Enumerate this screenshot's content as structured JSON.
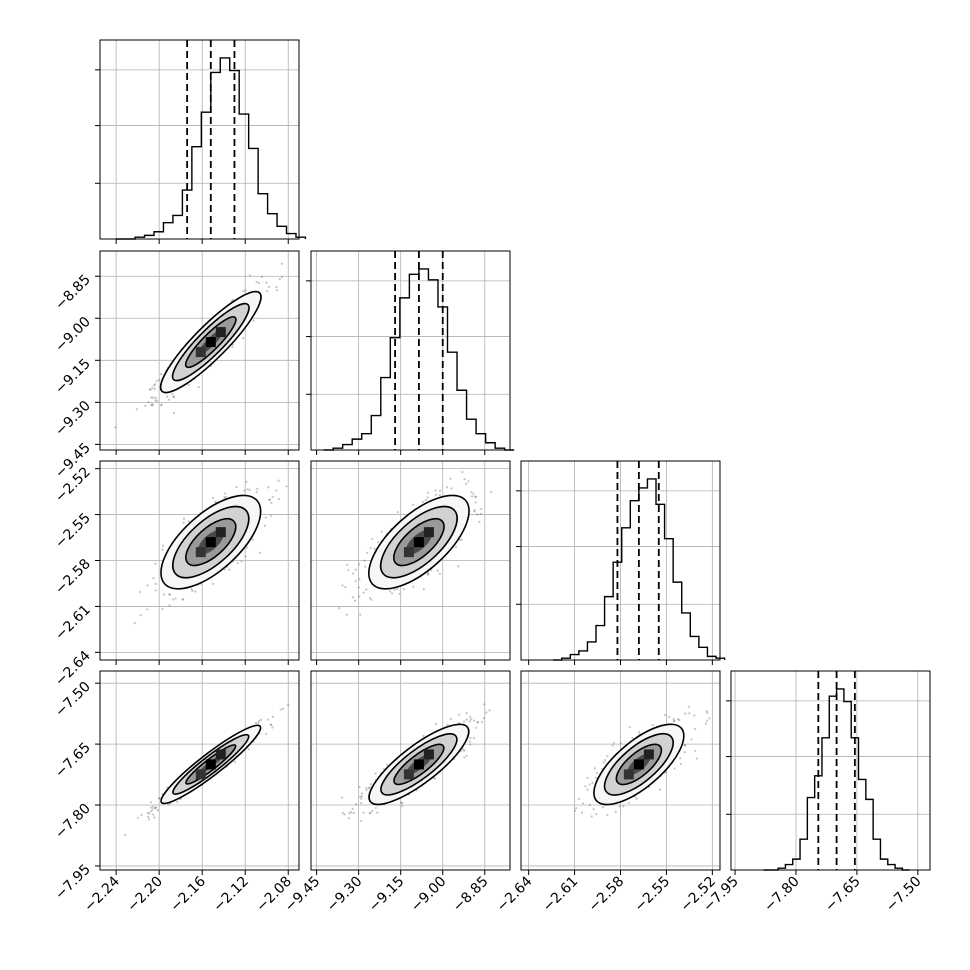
{
  "chart_data": {
    "type": "corner",
    "grid": true,
    "colors": {
      "line": "#000000",
      "grid": "#b0b0b0",
      "points": "#555555"
    },
    "parameters": [
      {
        "range": [
          -2.255,
          -2.07
        ],
        "mean": -2.152,
        "sd": 0.022,
        "quantiles": [
          -2.174,
          -2.152,
          -2.13
        ],
        "ticks": [
          {
            "v": -2.24,
            "label": "−2.24"
          },
          {
            "v": -2.2,
            "label": "−2.20"
          },
          {
            "v": -2.16,
            "label": "−2.16"
          },
          {
            "v": -2.12,
            "label": "−2.12"
          },
          {
            "v": -2.08,
            "label": "−2.08"
          }
        ]
      },
      {
        "range": [
          -9.47,
          -8.76
        ],
        "mean": -9.085,
        "sd": 0.085,
        "quantiles": [
          -9.17,
          -9.085,
          -9.0
        ],
        "ticks": [
          {
            "v": -9.45,
            "label": "−9.45"
          },
          {
            "v": -9.3,
            "label": "−9.30"
          },
          {
            "v": -9.15,
            "label": "−9.15"
          },
          {
            "v": -9.0,
            "label": "−9.00"
          },
          {
            "v": -8.85,
            "label": "−8.85"
          }
        ]
      },
      {
        "range": [
          -2.645,
          -2.515
        ],
        "mean": -2.568,
        "sd": 0.014,
        "quantiles": [
          -2.582,
          -2.568,
          -2.555
        ],
        "ticks": [
          {
            "v": -2.64,
            "label": "−2.64"
          },
          {
            "v": -2.61,
            "label": "−2.61"
          },
          {
            "v": -2.58,
            "label": "−2.58"
          },
          {
            "v": -2.55,
            "label": "−2.55"
          },
          {
            "v": -2.52,
            "label": "−2.52"
          }
        ]
      },
      {
        "range": [
          -7.96,
          -7.47
        ],
        "mean": -7.7,
        "sd": 0.045,
        "quantiles": [
          -7.745,
          -7.7,
          -7.655
        ],
        "ticks": [
          {
            "v": -7.95,
            "label": "−7.95"
          },
          {
            "v": -7.8,
            "label": "−7.80"
          },
          {
            "v": -7.65,
            "label": "−7.65"
          },
          {
            "v": -7.5,
            "label": "−7.50"
          }
        ]
      }
    ],
    "correlations": [
      [
        1,
        0.93,
        0.72,
        0.97
      ],
      [
        0.93,
        1,
        0.73,
        0.88
      ],
      [
        0.72,
        0.73,
        1,
        0.78
      ],
      [
        0.97,
        0.88,
        0.78,
        1
      ]
    ],
    "histograms": [
      [
        0,
        0,
        1,
        2,
        4,
        9,
        13,
        27,
        51,
        70,
        92,
        100,
        93,
        69,
        50,
        25,
        14,
        7,
        3,
        1
      ],
      [
        0,
        1,
        3,
        6,
        9,
        19,
        40,
        62,
        84,
        97,
        100,
        94,
        79,
        54,
        33,
        17,
        9,
        4,
        1,
        0
      ],
      [
        0,
        1,
        3,
        5,
        10,
        19,
        35,
        54,
        73,
        88,
        95,
        100,
        86,
        67,
        43,
        26,
        13,
        7,
        2,
        1
      ],
      [
        0,
        0,
        1,
        3,
        6,
        17,
        40,
        52,
        73,
        96,
        100,
        93,
        73,
        50,
        39,
        17,
        6,
        3,
        1,
        0
      ]
    ]
  }
}
